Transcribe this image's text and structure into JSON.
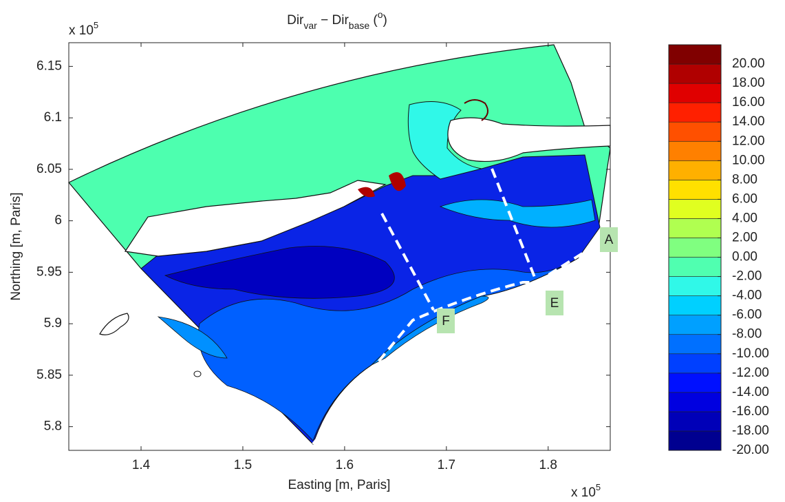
{
  "chart_data": {
    "type": "contour",
    "title": {
      "text1": "Dir",
      "sub1": "var",
      "text2": " − Dir",
      "sub2": "base",
      "text3": " (",
      "sup": "o",
      "text4": ")"
    },
    "x_label": "Easting [m, Paris]",
    "y_label": "Northing [m, Paris]",
    "x_multiplier": {
      "base": "x 10",
      "exponent": "5"
    },
    "y_multiplier": {
      "base": "x 10",
      "exponent": "5"
    },
    "xlim": [
      1.329,
      1.861
    ],
    "ylim": [
      5.777,
      6.173
    ],
    "xticks": [
      1.4,
      1.5,
      1.6,
      1.7,
      1.8
    ],
    "yticks": [
      5.8,
      5.85,
      5.9,
      5.95,
      6,
      6.05,
      6.1,
      6.15
    ],
    "colorbar": {
      "lim": [
        -20,
        22
      ],
      "levels": [
        -20,
        -18,
        -16,
        -14,
        -12,
        -10,
        -8,
        -6,
        -4,
        -2,
        0,
        2,
        4,
        6,
        8,
        10,
        12,
        14,
        16,
        18,
        20
      ],
      "colors": [
        "#000090",
        "#0000b8",
        "#0000e0",
        "#0010ff",
        "#0040ff",
        "#0070ff",
        "#00a0ff",
        "#00d0ff",
        "#30f8e8",
        "#50ffb0",
        "#80ff80",
        "#b0ff50",
        "#e0ff20",
        "#ffe000",
        "#ffb000",
        "#ff8000",
        "#ff5000",
        "#ff2000",
        "#e00000",
        "#b00000",
        "#800000"
      ],
      "ticks": [
        {
          "value": -20,
          "label": "-20.00"
        },
        {
          "value": -18,
          "label": "-18.00"
        },
        {
          "value": -16,
          "label": "-16.00"
        },
        {
          "value": -14,
          "label": "-14.00"
        },
        {
          "value": -12,
          "label": "-12.00"
        },
        {
          "value": -10,
          "label": "-10.00"
        },
        {
          "value": -8,
          "label": "-8.00"
        },
        {
          "value": -6,
          "label": "-6.00"
        },
        {
          "value": -4,
          "label": "-4.00"
        },
        {
          "value": -2,
          "label": "-2.00"
        },
        {
          "value": 0,
          "label": "0.00"
        },
        {
          "value": 2,
          "label": "2.00"
        },
        {
          "value": 4,
          "label": "4.00"
        },
        {
          "value": 6,
          "label": "6.00"
        },
        {
          "value": 8,
          "label": "8.00"
        },
        {
          "value": 10,
          "label": "10.00"
        },
        {
          "value": 12,
          "label": "12.00"
        },
        {
          "value": 14,
          "label": "14.00"
        },
        {
          "value": 16,
          "label": "16.00"
        },
        {
          "value": 18,
          "label": "18.00"
        },
        {
          "value": 20,
          "label": "20.00"
        }
      ]
    },
    "annotations": [
      {
        "text": "A"
      },
      {
        "text": "E"
      },
      {
        "text": "F"
      }
    ]
  }
}
